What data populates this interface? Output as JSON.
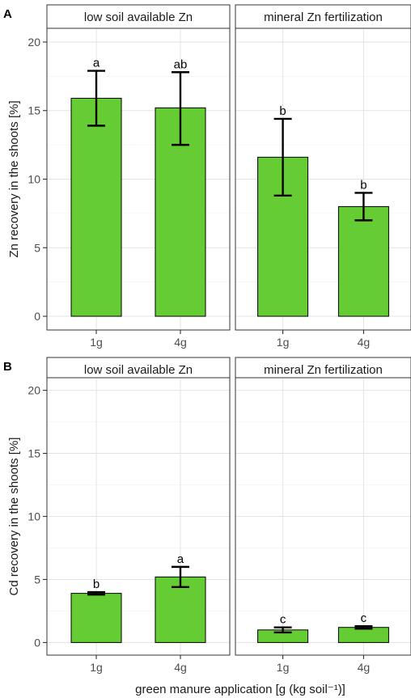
{
  "figure": {
    "x_axis_label": "green manure application [g (kg soil⁻¹)]"
  },
  "chart_data": [
    {
      "type": "bar",
      "panel_tag": "A",
      "ylabel": "Zn recovery in the shoots [%]",
      "ylim": [
        -1,
        21
      ],
      "y_ticks": [
        0,
        5,
        10,
        15,
        20
      ],
      "categories": [
        "1g",
        "4g"
      ],
      "bar_color": "#66cc33",
      "facets": [
        {
          "strip": "low soil available Zn",
          "values": [
            15.9,
            15.2
          ],
          "err_low": [
            13.9,
            12.5
          ],
          "err_high": [
            17.9,
            17.8
          ],
          "letters": [
            "a",
            "ab"
          ]
        },
        {
          "strip": "mineral Zn fertilization",
          "values": [
            11.6,
            8.0
          ],
          "err_low": [
            8.8,
            7.0
          ],
          "err_high": [
            14.4,
            9.0
          ],
          "letters": [
            "b",
            "b"
          ]
        }
      ]
    },
    {
      "type": "bar",
      "panel_tag": "B",
      "ylabel": "Cd recovery in the shoots [%]",
      "ylim": [
        -1,
        21
      ],
      "y_ticks": [
        0,
        5,
        10,
        15,
        20
      ],
      "categories": [
        "1g",
        "4g"
      ],
      "bar_color": "#66cc33",
      "facets": [
        {
          "strip": "low soil available Zn",
          "values": [
            3.9,
            5.2
          ],
          "err_low": [
            3.8,
            4.4
          ],
          "err_high": [
            4.0,
            6.0
          ],
          "letters": [
            "b",
            "a"
          ]
        },
        {
          "strip": "mineral Zn fertilization",
          "values": [
            1.0,
            1.2
          ],
          "err_low": [
            0.8,
            1.1
          ],
          "err_high": [
            1.2,
            1.3
          ],
          "letters": [
            "c",
            "c"
          ]
        }
      ]
    }
  ]
}
